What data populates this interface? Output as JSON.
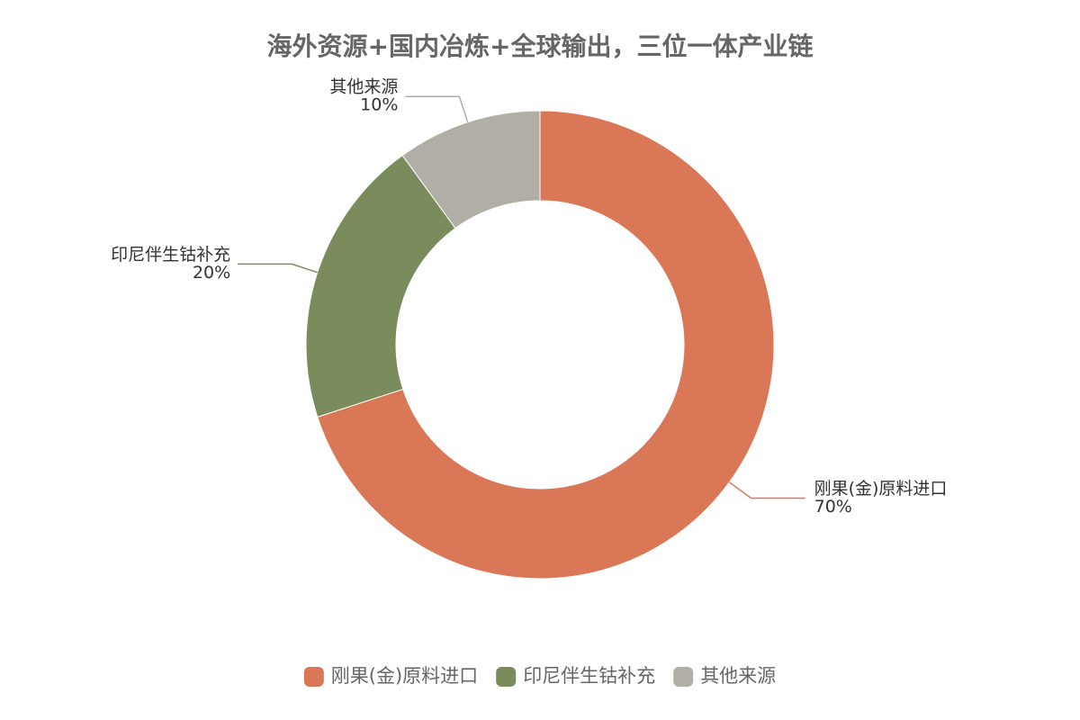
{
  "chart_data": {
    "type": "pie",
    "title": "海外资源+国内冶炼+全球输出，三位一体产业链",
    "categories": [
      "刚果(金)原料进口",
      "印尼伴生钴补充",
      "其他来源"
    ],
    "values": [
      70,
      20,
      10
    ],
    "value_labels": [
      "70%",
      "20%",
      "10%"
    ],
    "colors": [
      "#d97757",
      "#7a8b5c",
      "#b0aea5"
    ],
    "donut": true,
    "legend": "bottom"
  }
}
